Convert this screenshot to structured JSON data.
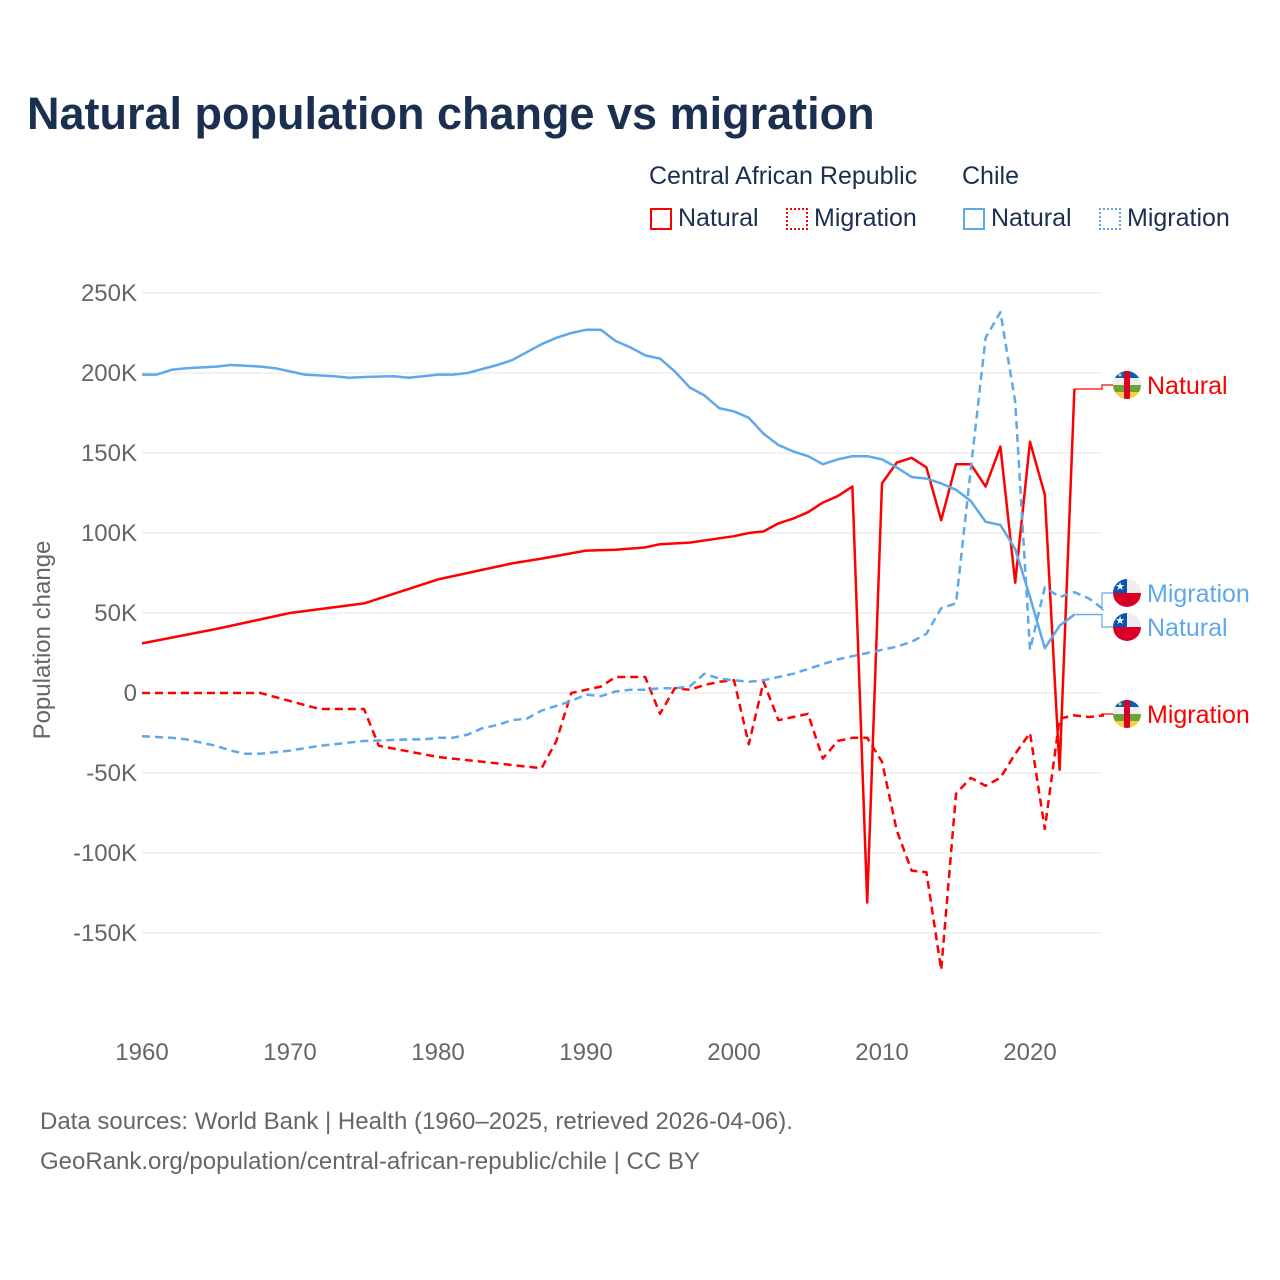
{
  "chart_data": {
    "type": "line",
    "title": "Natural population change vs migration",
    "ylabel": "Population change",
    "xlabel": "",
    "xlim": [
      1960,
      2025
    ],
    "ylim": [
      -200000,
      250000
    ],
    "x_ticks": [
      1960,
      1970,
      1980,
      1990,
      2000,
      2010,
      2020
    ],
    "x_tick_labels": [
      "1960",
      "1970",
      "1980",
      "1990",
      "2000",
      "2010",
      "2020"
    ],
    "y_ticks": [
      250000,
      200000,
      150000,
      100000,
      50000,
      0,
      -50000,
      -100000,
      -150000
    ],
    "y_tick_labels": [
      "250K",
      "200K",
      "150K",
      "100K",
      "50K",
      "0",
      "-50K",
      "-100K",
      "-150K"
    ],
    "grid": true,
    "legend": {
      "placement": "top-right",
      "groups": [
        {
          "name": "Central African Republic",
          "items": [
            "Natural",
            "Migration"
          ]
        },
        {
          "name": "Chile",
          "items": [
            "Natural",
            "Migration"
          ]
        }
      ]
    },
    "series": [
      {
        "name": "Central African Republic Natural",
        "country": "Central African Republic",
        "kind": "Natural",
        "label": "Natural",
        "color": "#ff0000",
        "dash": "solid",
        "points": [
          [
            1960,
            31
          ],
          [
            1965,
            40
          ],
          [
            1968,
            46
          ],
          [
            1970,
            50
          ],
          [
            1975,
            56
          ],
          [
            1980,
            71
          ],
          [
            1985,
            81
          ],
          [
            1987,
            84
          ],
          [
            1990,
            89
          ],
          [
            1992,
            89.5
          ],
          [
            1994,
            91
          ],
          [
            1995,
            93
          ],
          [
            1997,
            94
          ],
          [
            2000,
            98
          ],
          [
            2001,
            100
          ],
          [
            2002,
            101
          ],
          [
            2003,
            106
          ],
          [
            2004,
            109
          ],
          [
            2005,
            113
          ],
          [
            2006,
            119
          ],
          [
            2007,
            123
          ],
          [
            2008,
            129
          ],
          [
            2009,
            -131
          ],
          [
            2010,
            131
          ],
          [
            2011,
            144
          ],
          [
            2012,
            147
          ],
          [
            2013,
            141
          ],
          [
            2014,
            108
          ],
          [
            2015,
            143
          ],
          [
            2016,
            143
          ],
          [
            2017,
            129
          ],
          [
            2018,
            154
          ],
          [
            2019,
            69
          ],
          [
            2020,
            157
          ],
          [
            2021,
            124
          ],
          [
            2022,
            -48
          ],
          [
            2023,
            190
          ]
        ]
      },
      {
        "name": "Central African Republic Migration",
        "country": "Central African Republic",
        "kind": "Migration",
        "label": "Migration",
        "color": "#ff0000",
        "dash": "dashed",
        "points": [
          [
            1960,
            0
          ],
          [
            1968,
            0
          ],
          [
            1970,
            -5
          ],
          [
            1972,
            -10
          ],
          [
            1975,
            -10
          ],
          [
            1976,
            -33
          ],
          [
            1980,
            -40
          ],
          [
            1985,
            -45
          ],
          [
            1987,
            -47
          ],
          [
            1988,
            -30
          ],
          [
            1989,
            0
          ],
          [
            1990,
            2
          ],
          [
            1991,
            4
          ],
          [
            1992,
            10
          ],
          [
            1994,
            10
          ],
          [
            1995,
            -13
          ],
          [
            1996,
            3
          ],
          [
            1997,
            2
          ],
          [
            1998,
            5
          ],
          [
            1999,
            7
          ],
          [
            2000,
            8
          ],
          [
            2001,
            -32
          ],
          [
            2002,
            7
          ],
          [
            2003,
            -17
          ],
          [
            2004,
            -15
          ],
          [
            2005,
            -13
          ],
          [
            2006,
            -41
          ],
          [
            2007,
            -30
          ],
          [
            2008,
            -28
          ],
          [
            2009,
            -28
          ],
          [
            2010,
            -43
          ],
          [
            2011,
            -86
          ],
          [
            2012,
            -111
          ],
          [
            2013,
            -112
          ],
          [
            2014,
            -173
          ],
          [
            2015,
            -63
          ],
          [
            2016,
            -53
          ],
          [
            2017,
            -58
          ],
          [
            2018,
            -53
          ],
          [
            2019,
            -38
          ],
          [
            2020,
            -25
          ],
          [
            2021,
            -85
          ],
          [
            2022,
            -16
          ],
          [
            2023,
            -14
          ],
          [
            2024,
            -15
          ],
          [
            2025,
            -14
          ]
        ]
      },
      {
        "name": "Chile Natural",
        "country": "Chile",
        "kind": "Natural",
        "label": "Natural",
        "color": "#5fa8ea",
        "dash": "solid",
        "points": [
          [
            1960,
            199
          ],
          [
            1961,
            199
          ],
          [
            1962,
            202
          ],
          [
            1963,
            203
          ],
          [
            1965,
            204
          ],
          [
            1966,
            205
          ],
          [
            1968,
            204
          ],
          [
            1969,
            203
          ],
          [
            1970,
            201
          ],
          [
            1971,
            199
          ],
          [
            1973,
            198
          ],
          [
            1974,
            197
          ],
          [
            1975,
            197.5
          ],
          [
            1977,
            198
          ],
          [
            1978,
            197
          ],
          [
            1979,
            198
          ],
          [
            1980,
            199
          ],
          [
            1981,
            199
          ],
          [
            1982,
            200
          ],
          [
            1984,
            205
          ],
          [
            1985,
            208
          ],
          [
            1986,
            213
          ],
          [
            1987,
            218
          ],
          [
            1988,
            222
          ],
          [
            1989,
            225
          ],
          [
            1990,
            227
          ],
          [
            1991,
            227
          ],
          [
            1992,
            220
          ],
          [
            1993,
            216
          ],
          [
            1994,
            211
          ],
          [
            1995,
            209
          ],
          [
            1996,
            201
          ],
          [
            1997,
            191
          ],
          [
            1998,
            186
          ],
          [
            1999,
            178
          ],
          [
            2000,
            176
          ],
          [
            2001,
            172
          ],
          [
            2002,
            162
          ],
          [
            2003,
            155
          ],
          [
            2004,
            151
          ],
          [
            2005,
            148
          ],
          [
            2006,
            143
          ],
          [
            2007,
            146
          ],
          [
            2008,
            148
          ],
          [
            2009,
            148
          ],
          [
            2010,
            146
          ],
          [
            2011,
            141
          ],
          [
            2012,
            135
          ],
          [
            2013,
            134
          ],
          [
            2014,
            131
          ],
          [
            2015,
            127
          ],
          [
            2016,
            120
          ],
          [
            2017,
            107
          ],
          [
            2018,
            105
          ],
          [
            2019,
            90
          ],
          [
            2020,
            60
          ],
          [
            2021,
            28
          ],
          [
            2022,
            42
          ],
          [
            2023,
            49
          ]
        ]
      },
      {
        "name": "Chile Migration",
        "country": "Chile",
        "kind": "Migration",
        "label": "Migration",
        "color": "#5fa8ea",
        "dash": "dashed",
        "points": [
          [
            1960,
            -27
          ],
          [
            1962,
            -28
          ],
          [
            1963,
            -29
          ],
          [
            1965,
            -33
          ],
          [
            1966,
            -36
          ],
          [
            1967,
            -38
          ],
          [
            1968,
            -38
          ],
          [
            1970,
            -36
          ],
          [
            1972,
            -33
          ],
          [
            1975,
            -30
          ],
          [
            1978,
            -29
          ],
          [
            1979,
            -29
          ],
          [
            1980,
            -28
          ],
          [
            1981,
            -28
          ],
          [
            1982,
            -26
          ],
          [
            1983,
            -22
          ],
          [
            1984,
            -20
          ],
          [
            1985,
            -17
          ],
          [
            1986,
            -16
          ],
          [
            1987,
            -11
          ],
          [
            1988,
            -8
          ],
          [
            1989,
            -5
          ],
          [
            1990,
            -1
          ],
          [
            1991,
            -2
          ],
          [
            1992,
            1
          ],
          [
            1993,
            2
          ],
          [
            1994,
            2
          ],
          [
            1995,
            3
          ],
          [
            1996,
            3
          ],
          [
            1997,
            4
          ],
          [
            1998,
            12
          ],
          [
            1999,
            9
          ],
          [
            2000,
            8
          ],
          [
            2001,
            7
          ],
          [
            2002,
            8
          ],
          [
            2003,
            10
          ],
          [
            2004,
            12
          ],
          [
            2005,
            15
          ],
          [
            2006,
            18
          ],
          [
            2007,
            21
          ],
          [
            2008,
            23
          ],
          [
            2009,
            25
          ],
          [
            2010,
            27
          ],
          [
            2011,
            29
          ],
          [
            2012,
            32
          ],
          [
            2013,
            37
          ],
          [
            2014,
            53
          ],
          [
            2015,
            56
          ],
          [
            2016,
            140
          ],
          [
            2017,
            222
          ],
          [
            2018,
            238
          ],
          [
            2019,
            182
          ],
          [
            2020,
            27
          ],
          [
            2021,
            66
          ],
          [
            2022,
            60
          ],
          [
            2023,
            63
          ],
          [
            2024,
            59
          ],
          [
            2025,
            52
          ]
        ]
      }
    ],
    "value_unit": "thousands"
  },
  "footer": {
    "line1": "Data sources: World Bank | Health (1960–2025, retrieved 2026-04-06).",
    "line2": "GeoRank.org/population/central-african-republic/chile | CC BY"
  }
}
